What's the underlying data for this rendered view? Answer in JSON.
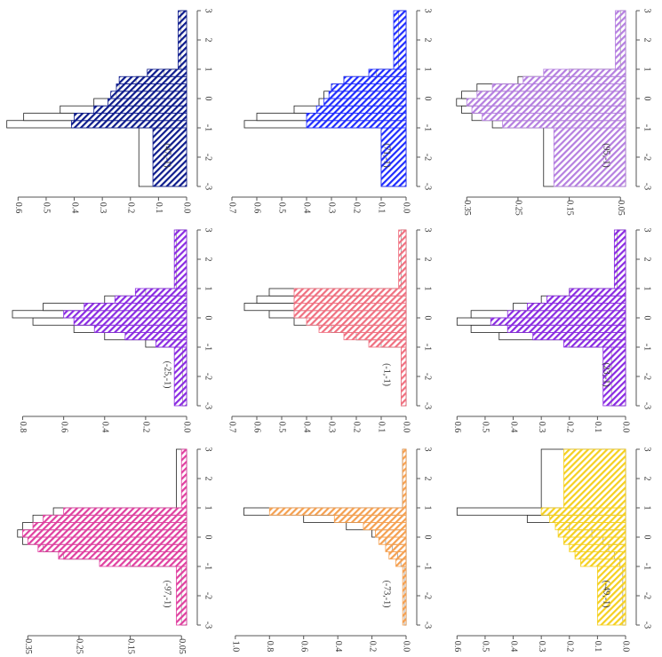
{
  "chart_data": [
    {
      "type": "histogram",
      "title": "(47,-1)",
      "bins": [
        -3,
        -1,
        -0.75,
        -0.5,
        -0.25,
        0,
        0.25,
        0.5,
        0.75,
        1,
        3
      ],
      "xlim": [
        -3,
        3
      ],
      "xticks": [
        -3,
        -2,
        -1,
        0,
        1,
        2,
        3
      ],
      "ylim": [
        0,
        0.62
      ],
      "yticks": [
        {
          "value": 0,
          "label": "0.0"
        },
        {
          "value": 0.1,
          "label": "0.1"
        },
        {
          "value": 0.2,
          "label": "0.2"
        },
        {
          "value": 0.3,
          "label": "0.3"
        },
        {
          "value": 0.4,
          "label": "0.4"
        },
        {
          "value": 0.5,
          "label": "0.5"
        },
        {
          "value": 0.6,
          "label": "0.6"
        }
      ],
      "series": [
        {
          "color": "#ffffff",
          "values": [
            0.17,
            0.64,
            0.58,
            0.45,
            0.33,
            0.25,
            0.24,
            0.18,
            0.08,
            0.02
          ]
        },
        {
          "color": "#0d1b8c",
          "values": [
            0.12,
            0.41,
            0.4,
            0.33,
            0.28,
            0.27,
            0.25,
            0.24,
            0.14,
            0.03
          ]
        }
      ]
    },
    {
      "type": "histogram",
      "title": "(71,-1)",
      "bins": [
        -3,
        -1,
        -0.75,
        -0.5,
        -0.25,
        0,
        0.25,
        0.5,
        0.75,
        1,
        3
      ],
      "xlim": [
        -3,
        3
      ],
      "xticks": [
        -3,
        -2,
        -1,
        0,
        1,
        2,
        3
      ],
      "ylim": [
        0,
        0.7
      ],
      "yticks": [
        {
          "value": 0,
          "label": "0.0"
        },
        {
          "value": 0.1,
          "label": "0.1"
        },
        {
          "value": 0.2,
          "label": "0.2"
        },
        {
          "value": 0.3,
          "label": "0.3"
        },
        {
          "value": 0.4,
          "label": "0.4"
        },
        {
          "value": 0.5,
          "label": "0.5"
        },
        {
          "value": 0.6,
          "label": "0.6"
        },
        {
          "value": 0.7,
          "label": "0.7"
        }
      ],
      "series": [
        {
          "color": "#ffffff",
          "values": [
            0.1,
            0.65,
            0.6,
            0.45,
            0.35,
            0.33,
            0.3,
            0.25,
            0.12,
            0.03
          ]
        },
        {
          "color": "#1f2cff",
          "values": [
            0.1,
            0.4,
            0.4,
            0.36,
            0.33,
            0.31,
            0.3,
            0.25,
            0.15,
            0.05
          ]
        }
      ]
    },
    {
      "type": "histogram",
      "title": "(95,-1)",
      "bins": [
        -3,
        -1,
        -0.75,
        -0.5,
        -0.25,
        0,
        0.25,
        0.5,
        0.75,
        1,
        3
      ],
      "xlim": [
        -3,
        3
      ],
      "xticks": [
        -3,
        -2,
        -1,
        0,
        1,
        2,
        3
      ],
      "ylim": [
        0.04,
        0.38
      ],
      "yticks": [
        0.05,
        0.15,
        0.25,
        0.35
      ],
      "series": [
        {
          "color": "#ffffff",
          "values": [
            0.2,
            0.3,
            0.34,
            0.36,
            0.37,
            0.36,
            0.33,
            0.25,
            0.15,
            0.05
          ]
        },
        {
          "color": "#b57fe0",
          "values": [
            0.18,
            0.28,
            0.32,
            0.34,
            0.35,
            0.33,
            0.3,
            0.24,
            0.2,
            0.06
          ]
        }
      ]
    },
    {
      "type": "histogram",
      "title": "(-25,-1)",
      "bins": [
        -3,
        -1,
        -0.75,
        -0.5,
        -0.25,
        0,
        0.25,
        0.5,
        0.75,
        1,
        3
      ],
      "xlim": [
        -3,
        3
      ],
      "xticks": [
        -3,
        -2,
        -1,
        0,
        1,
        2,
        3
      ],
      "ylim": [
        0,
        0.85
      ],
      "yticks": [
        {
          "value": 0,
          "label": "0.0"
        },
        {
          "value": 0.2,
          "label": "0.2"
        },
        {
          "value": 0.4,
          "label": "0.4"
        },
        {
          "value": 0.6,
          "label": "0.6"
        },
        {
          "value": 0.8,
          "label": "0.8"
        }
      ],
      "series": [
        {
          "color": "#ffffff",
          "values": [
            0.02,
            0.2,
            0.4,
            0.55,
            0.75,
            0.85,
            0.7,
            0.4,
            0.2,
            0.05
          ]
        },
        {
          "color": "#8a2be2",
          "values": [
            0.06,
            0.15,
            0.3,
            0.45,
            0.55,
            0.6,
            0.5,
            0.35,
            0.25,
            0.06
          ]
        }
      ]
    },
    {
      "type": "histogram",
      "title": "(-1,-1)",
      "bins": [
        -3,
        -1,
        -0.75,
        -0.5,
        -0.25,
        0,
        0.25,
        0.5,
        0.75,
        1,
        3
      ],
      "xlim": [
        -3,
        3
      ],
      "xticks": [
        -3,
        -2,
        -1,
        0,
        1,
        2,
        3
      ],
      "ylim": [
        0,
        0.7
      ],
      "yticks": [
        {
          "value": 0,
          "label": "0.0"
        },
        {
          "value": 0.1,
          "label": "0.1"
        },
        {
          "value": 0.2,
          "label": "0.2"
        },
        {
          "value": 0.3,
          "label": "0.3"
        },
        {
          "value": 0.4,
          "label": "0.4"
        },
        {
          "value": 0.5,
          "label": "0.5"
        },
        {
          "value": 0.6,
          "label": "0.6"
        },
        {
          "value": 0.7,
          "label": "0.7"
        }
      ],
      "series": [
        {
          "color": "#ffffff",
          "values": [
            0.02,
            0.1,
            0.2,
            0.3,
            0.45,
            0.55,
            0.65,
            0.6,
            0.55,
            0.02
          ]
        },
        {
          "color": "#f07080",
          "values": [
            0.02,
            0.15,
            0.25,
            0.35,
            0.4,
            0.45,
            0.45,
            0.45,
            0.45,
            0.03
          ]
        }
      ]
    },
    {
      "type": "histogram",
      "title": "(23,-1)",
      "bins": [
        -3,
        -1,
        -0.75,
        -0.5,
        -0.25,
        0,
        0.25,
        0.5,
        0.75,
        1,
        3
      ],
      "xlim": [
        -3,
        3
      ],
      "xticks": [
        -3,
        -2,
        -1,
        0,
        1,
        2,
        3
      ],
      "ylim": [
        0,
        0.62
      ],
      "yticks": [
        {
          "value": 0,
          "label": "0.0"
        },
        {
          "value": 0.1,
          "label": "0.1"
        },
        {
          "value": 0.2,
          "label": "0.2"
        },
        {
          "value": 0.3,
          "label": "0.3"
        },
        {
          "value": 0.4,
          "label": "0.4"
        },
        {
          "value": 0.5,
          "label": "0.5"
        },
        {
          "value": 0.6,
          "label": "0.6"
        }
      ],
      "series": [
        {
          "color": "#ffffff",
          "values": [
            0.05,
            0.2,
            0.45,
            0.55,
            0.6,
            0.55,
            0.4,
            0.3,
            0.2,
            0.03
          ]
        },
        {
          "color": "#8a2be2",
          "values": [
            0.08,
            0.22,
            0.33,
            0.42,
            0.48,
            0.42,
            0.35,
            0.28,
            0.2,
            0.04
          ]
        }
      ]
    },
    {
      "type": "histogram",
      "title": "(-97,-1)",
      "bins": [
        -3,
        -1,
        -0.75,
        -0.5,
        -0.25,
        0,
        0.25,
        0.5,
        0.75,
        1,
        3
      ],
      "xlim": [
        -3,
        3
      ],
      "xticks": [
        -3,
        -2,
        -1,
        0,
        1,
        2,
        3
      ],
      "ylim": [
        0.04,
        0.38
      ],
      "yticks": [
        0.05,
        0.15,
        0.25,
        0.35
      ],
      "series": [
        {
          "color": "#ffffff",
          "values": [
            0.05,
            0.15,
            0.28,
            0.32,
            0.36,
            0.37,
            0.36,
            0.34,
            0.3,
            0.06
          ]
        },
        {
          "color": "#e040a0",
          "values": [
            0.06,
            0.21,
            0.29,
            0.33,
            0.35,
            0.36,
            0.34,
            0.32,
            0.28,
            0.05
          ]
        }
      ]
    },
    {
      "type": "histogram",
      "title": "(-73,-1)",
      "bins": [
        -3,
        -1,
        -0.75,
        -0.5,
        -0.25,
        0,
        0.25,
        0.5,
        0.75,
        1,
        3
      ],
      "xlim": [
        -3,
        3
      ],
      "xticks": [
        -3,
        -2,
        -1,
        0,
        1,
        2,
        3
      ],
      "ylim": [
        0,
        1.02
      ],
      "yticks": [
        {
          "value": 0,
          "label": "0.0"
        },
        {
          "value": 0.2,
          "label": "0.2"
        },
        {
          "value": 0.4,
          "label": "0.4"
        },
        {
          "value": 0.6,
          "label": "0.6"
        },
        {
          "value": 0.8,
          "label": "0.8"
        },
        {
          "value": 1,
          "label": "1.0"
        }
      ],
      "series": [
        {
          "color": "#ffffff",
          "values": [
            0.01,
            0.03,
            0.05,
            0.08,
            0.12,
            0.2,
            0.35,
            0.6,
            0.95,
            0.02
          ]
        },
        {
          "color": "#f5a050",
          "values": [
            0.02,
            0.06,
            0.1,
            0.12,
            0.16,
            0.18,
            0.25,
            0.42,
            0.8,
            0.02
          ]
        }
      ]
    },
    {
      "type": "histogram",
      "title": "(-49,-1)",
      "bins": [
        -3,
        -1,
        -0.75,
        -0.5,
        -0.25,
        0,
        0.25,
        0.5,
        0.75,
        1,
        3
      ],
      "xlim": [
        -3,
        3
      ],
      "xticks": [
        -3,
        -2,
        -1,
        0,
        1,
        2,
        3
      ],
      "ylim": [
        0,
        0.62
      ],
      "yticks": [
        {
          "value": 0,
          "label": "0.0"
        },
        {
          "value": 0.1,
          "label": "0.1"
        },
        {
          "value": 0.2,
          "label": "0.2"
        },
        {
          "value": 0.3,
          "label": "0.3"
        },
        {
          "value": 0.4,
          "label": "0.4"
        },
        {
          "value": 0.5,
          "label": "0.5"
        },
        {
          "value": 0.6,
          "label": "0.6"
        }
      ],
      "series": [
        {
          "color": "#ffffff",
          "values": [
            0.01,
            0.02,
            0.04,
            0.06,
            0.08,
            0.12,
            0.2,
            0.35,
            0.6,
            0.3
          ]
        },
        {
          "color": "#f5d020",
          "values": [
            0.1,
            0.16,
            0.18,
            0.2,
            0.22,
            0.24,
            0.25,
            0.27,
            0.3,
            0.22
          ]
        }
      ]
    }
  ]
}
